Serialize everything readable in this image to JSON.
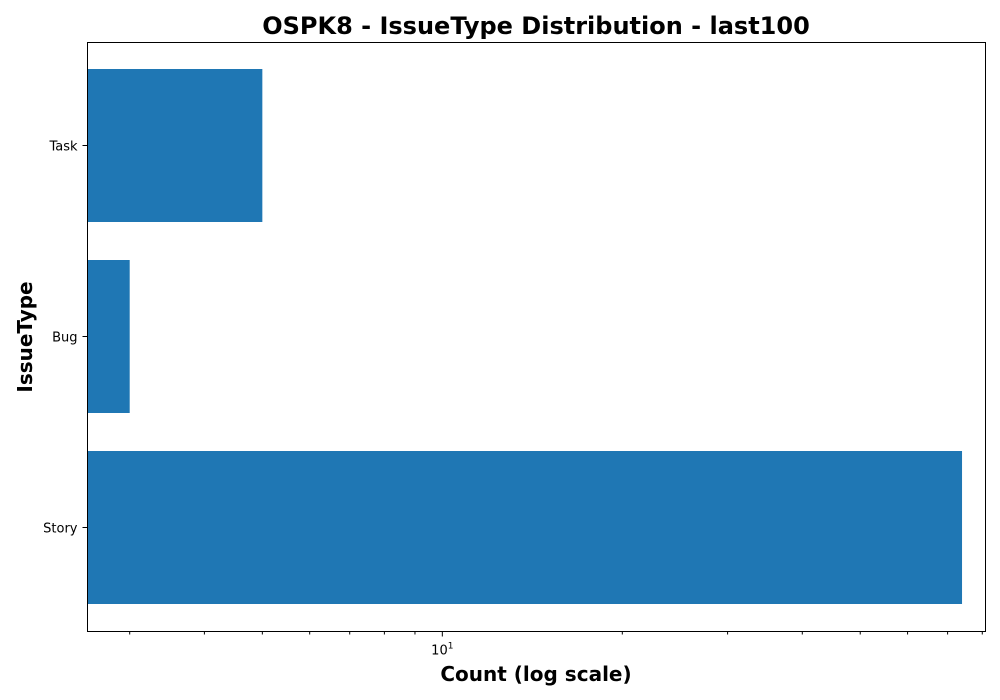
{
  "chart_data": {
    "type": "bar",
    "orientation": "horizontal",
    "title": "OSPK8 - IssueType Distribution - last100",
    "xlabel": "Count (log scale)",
    "ylabel": "IssueType",
    "x_scale": "log",
    "xlim": [
      2.55,
      81
    ],
    "categories": [
      "Story",
      "Bug",
      "Task"
    ],
    "values": [
      74,
      3,
      5
    ],
    "bar_color": "#1f77b4",
    "grid": false,
    "x_major_ticks": [
      {
        "value": 10,
        "base": "10",
        "exp": "1"
      }
    ],
    "x_minor_ticks": [
      3,
      4,
      5,
      6,
      7,
      8,
      9,
      20,
      30,
      40,
      50,
      60,
      70,
      80
    ]
  }
}
